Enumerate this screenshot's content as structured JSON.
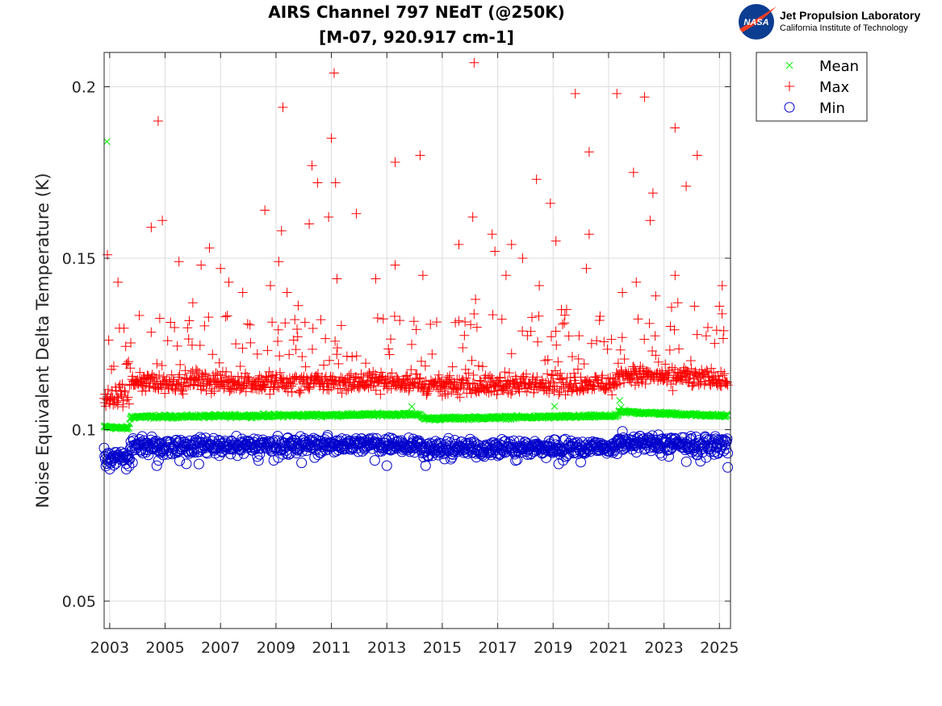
{
  "logo": {
    "badge": "NASA",
    "title": "Jet Propulsion Laboratory",
    "subtitle": "California Institute of Technology"
  },
  "colors": {
    "mean": "#00ee00",
    "max": "#ff0000",
    "min": "#0000cc"
  },
  "chart_data": {
    "type": "scatter",
    "title": [
      "AIRS Channel 797 NEdT (@250K)",
      "[M-07, 920.917 cm-1]"
    ],
    "xlabel": "",
    "ylabel": "Noise Equivalent Delta Temperature (K)",
    "xlim": [
      2002.8,
      2025.4
    ],
    "ylim": [
      0.042,
      0.21
    ],
    "xticks": [
      2003,
      2005,
      2007,
      2009,
      2011,
      2013,
      2015,
      2017,
      2019,
      2021,
      2023,
      2025
    ],
    "xtick_labels": [
      "2003",
      "2005",
      "2007",
      "2009",
      "2011",
      "2013",
      "2015",
      "2017",
      "2019",
      "2021",
      "2023",
      "2025"
    ],
    "yticks": [
      0.05,
      0.1,
      0.15,
      0.2
    ],
    "ytick_labels": [
      "0.05",
      "0.1",
      "0.15",
      "0.2"
    ],
    "grid": true,
    "legend": {
      "position": "outside-top-right",
      "entries": [
        "Mean",
        "Max",
        "Min"
      ]
    },
    "series": [
      {
        "name": "Mean",
        "marker": "x",
        "color": "#00ee00",
        "baseline": [
          [
            2002.8,
            0.1008
          ],
          [
            2003.7,
            0.1004
          ],
          [
            2003.75,
            0.1037
          ],
          [
            2014.2,
            0.1045
          ],
          [
            2014.3,
            0.1032
          ],
          [
            2021.3,
            0.104
          ],
          [
            2021.4,
            0.1052
          ],
          [
            2025.3,
            0.104
          ]
        ],
        "outliers": [
          [
            2002.9,
            0.184
          ],
          [
            2013.9,
            0.1067
          ],
          [
            2019.05,
            0.1068
          ],
          [
            2021.4,
            0.1085
          ],
          [
            2021.45,
            0.1065
          ]
        ]
      },
      {
        "name": "Max",
        "marker": "+",
        "color": "#ff0000",
        "baseline": [
          [
            2002.8,
            0.1095
          ],
          [
            2003.7,
            0.1092
          ],
          [
            2003.75,
            0.1138
          ],
          [
            2014.2,
            0.114
          ],
          [
            2014.3,
            0.1125
          ],
          [
            2021.3,
            0.1135
          ],
          [
            2021.4,
            0.116
          ],
          [
            2025.3,
            0.1145
          ]
        ],
        "outliers": [
          [
            2002.92,
            0.151
          ],
          [
            2003.3,
            0.143
          ],
          [
            2004.5,
            0.159
          ],
          [
            2004.75,
            0.19
          ],
          [
            2004.9,
            0.161
          ],
          [
            2005.5,
            0.149
          ],
          [
            2006.0,
            0.137
          ],
          [
            2006.3,
            0.148
          ],
          [
            2006.6,
            0.153
          ],
          [
            2007.0,
            0.147
          ],
          [
            2007.3,
            0.143
          ],
          [
            2007.8,
            0.14
          ],
          [
            2008.6,
            0.164
          ],
          [
            2008.8,
            0.142
          ],
          [
            2009.1,
            0.149
          ],
          [
            2009.2,
            0.158
          ],
          [
            2009.25,
            0.194
          ],
          [
            2009.4,
            0.14
          ],
          [
            2010.2,
            0.16
          ],
          [
            2010.3,
            0.177
          ],
          [
            2010.5,
            0.172
          ],
          [
            2010.9,
            0.162
          ],
          [
            2011.0,
            0.185
          ],
          [
            2011.1,
            0.204
          ],
          [
            2011.15,
            0.172
          ],
          [
            2011.2,
            0.144
          ],
          [
            2011.9,
            0.163
          ],
          [
            2012.6,
            0.144
          ],
          [
            2013.3,
            0.178
          ],
          [
            2013.3,
            0.148
          ],
          [
            2014.2,
            0.18
          ],
          [
            2014.3,
            0.145
          ],
          [
            2015.6,
            0.154
          ],
          [
            2016.1,
            0.162
          ],
          [
            2016.15,
            0.207
          ],
          [
            2016.2,
            0.138
          ],
          [
            2016.8,
            0.157
          ],
          [
            2016.9,
            0.152
          ],
          [
            2017.3,
            0.145
          ],
          [
            2017.5,
            0.154
          ],
          [
            2017.9,
            0.15
          ],
          [
            2018.4,
            0.173
          ],
          [
            2018.5,
            0.142
          ],
          [
            2018.9,
            0.166
          ],
          [
            2019.1,
            0.155
          ],
          [
            2019.3,
            0.135
          ],
          [
            2019.8,
            0.198
          ],
          [
            2020.3,
            0.181
          ],
          [
            2020.3,
            0.157
          ],
          [
            2020.2,
            0.147
          ],
          [
            2021.3,
            0.198
          ],
          [
            2021.5,
            0.14
          ],
          [
            2021.9,
            0.175
          ],
          [
            2022.0,
            0.143
          ],
          [
            2022.3,
            0.197
          ],
          [
            2022.5,
            0.161
          ],
          [
            2022.6,
            0.169
          ],
          [
            2022.7,
            0.139
          ],
          [
            2023.4,
            0.188
          ],
          [
            2023.4,
            0.145
          ],
          [
            2023.5,
            0.137
          ],
          [
            2023.8,
            0.171
          ],
          [
            2024.1,
            0.136
          ],
          [
            2024.2,
            0.18
          ],
          [
            2025.0,
            0.136
          ],
          [
            2025.1,
            0.142
          ],
          [
            2024.9,
            0.129
          ]
        ]
      },
      {
        "name": "Min",
        "marker": "o",
        "color": "#0000cc",
        "baseline": [
          [
            2002.8,
            0.0918
          ],
          [
            2003.7,
            0.0914
          ],
          [
            2003.75,
            0.0952
          ],
          [
            2014.2,
            0.0958
          ],
          [
            2014.3,
            0.0945
          ],
          [
            2021.3,
            0.095
          ],
          [
            2021.4,
            0.0962
          ],
          [
            2025.3,
            0.0955
          ]
        ],
        "outliers": [
          [
            2003.0,
            0.0885
          ],
          [
            2003.6,
            0.0885
          ],
          [
            2004.7,
            0.0895
          ],
          [
            2013.0,
            0.0895
          ],
          [
            2014.4,
            0.0895
          ],
          [
            2019.2,
            0.09
          ],
          [
            2021.5,
            0.0995
          ],
          [
            2022.8,
            0.0985
          ],
          [
            2025.3,
            0.089
          ]
        ]
      }
    ]
  }
}
